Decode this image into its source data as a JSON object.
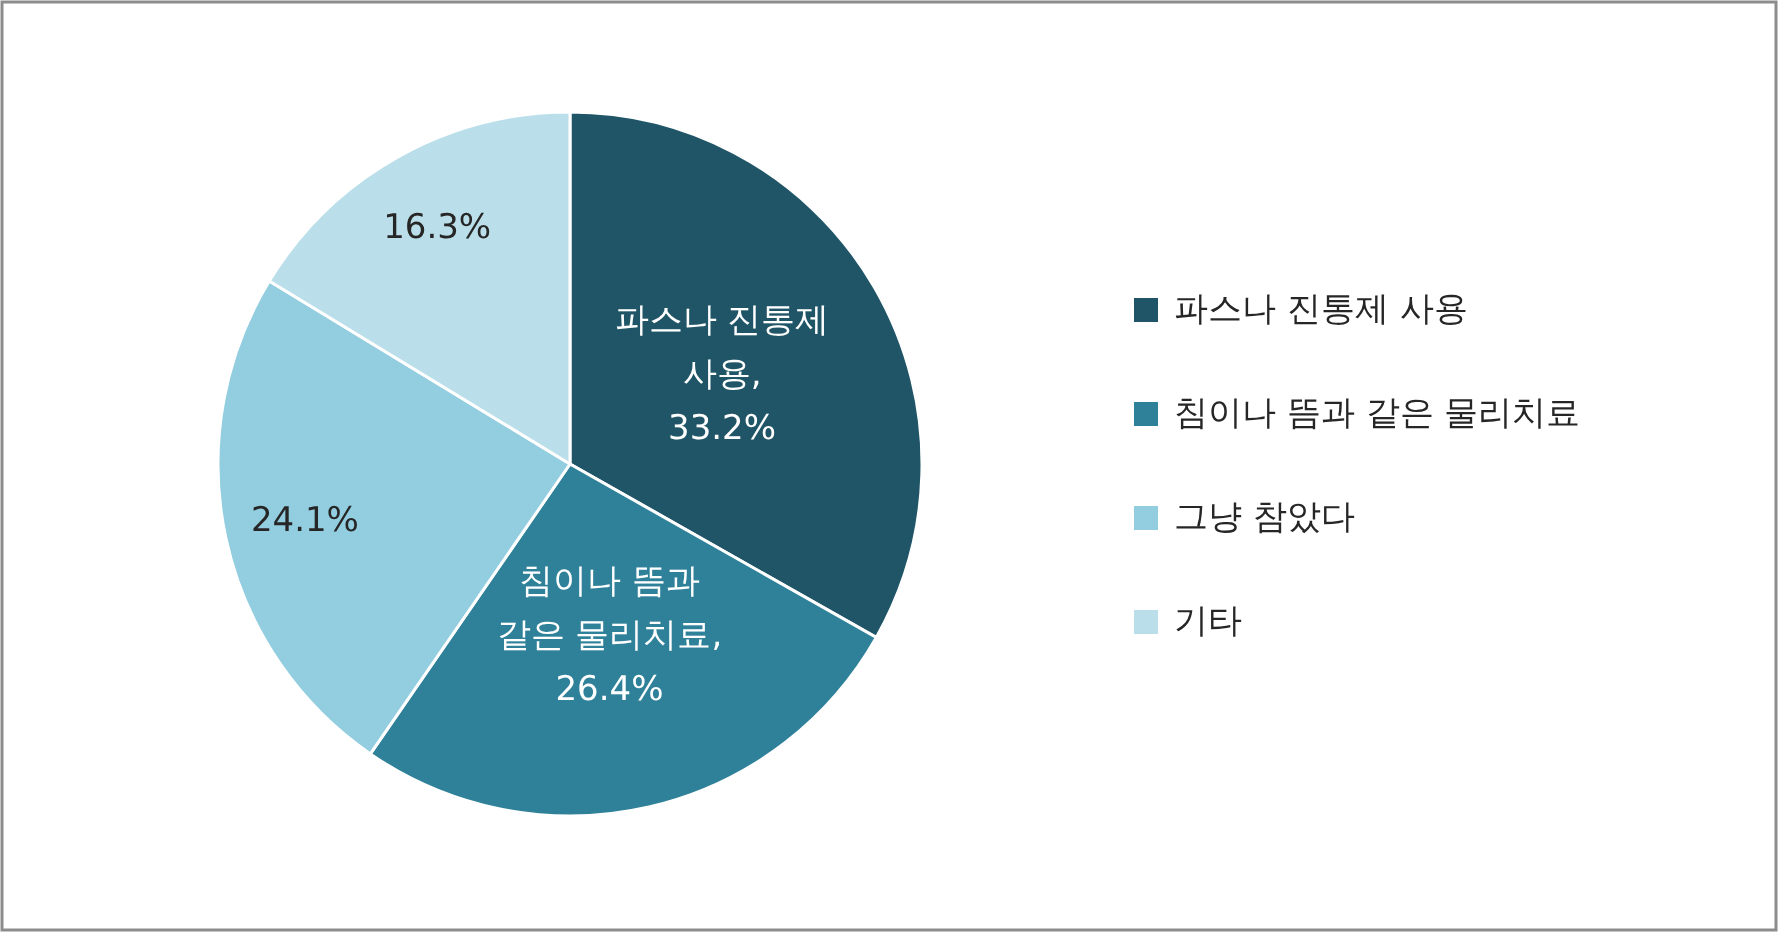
{
  "chart_data": {
    "type": "pie",
    "categories": [
      "파스나 진통제 사용",
      "침이나 뜸과 같은 물리치료",
      "그냥 참았다",
      "기타"
    ],
    "values": [
      33.2,
      26.4,
      24.1,
      16.3
    ],
    "colors": [
      "#1f5566",
      "#2e8199",
      "#92cde0",
      "#badfea"
    ],
    "value_labels": [
      "파스나 진통제\n사용,\n33.2%",
      "침이나 뜸과\n같은 물리치료,\n26.4%",
      "24.1%",
      "16.3%"
    ],
    "legend": "right"
  }
}
